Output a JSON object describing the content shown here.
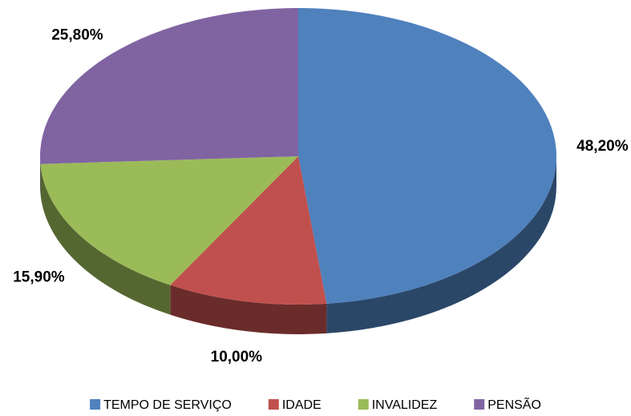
{
  "chart_data": {
    "type": "pie",
    "categories": [
      "TEMPO DE SERVIÇO",
      "IDADE",
      "INVALIDEZ",
      "PENSÃO"
    ],
    "values": [
      48.2,
      10.0,
      15.9,
      25.8
    ],
    "value_labels": [
      "48,20%",
      "10,00%",
      "15,90%",
      "25,80%"
    ],
    "colors": [
      "#4f81bd",
      "#c0504d",
      "#9bbb59",
      "#8064a2"
    ],
    "legend": "bottom"
  }
}
